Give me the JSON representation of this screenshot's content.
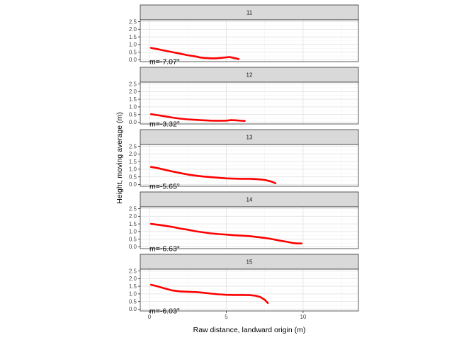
{
  "chart_data": {
    "type": "line",
    "xlabel": "Raw distance, landward origin (m)",
    "ylabel": "Height, moving average (m)",
    "xlim": [
      -0.6,
      13.6
    ],
    "ylim": [
      -0.12,
      2.62
    ],
    "x_ticks": [
      "0",
      "5",
      "10"
    ],
    "x_tick_values": [
      0,
      5,
      10
    ],
    "y_ticks": [
      "0.0",
      "0.5",
      "1.0",
      "1.5",
      "2.0",
      "2.5"
    ],
    "y_tick_values": [
      0,
      0.5,
      1,
      1.5,
      2,
      2.5
    ],
    "grid": true,
    "line_color": "#ff0000",
    "panels": [
      {
        "strip": "11",
        "annotation": "m=-7.07°",
        "x": [
          0.1,
          0.5,
          1.0,
          1.5,
          2.0,
          2.5,
          3.0,
          3.3,
          3.6,
          4.0,
          4.3,
          4.6,
          4.9,
          5.2,
          5.5,
          5.8
        ],
        "y": [
          0.78,
          0.7,
          0.6,
          0.5,
          0.4,
          0.3,
          0.22,
          0.15,
          0.12,
          0.1,
          0.1,
          0.12,
          0.15,
          0.18,
          0.12,
          0.05
        ]
      },
      {
        "strip": "12",
        "annotation": "m=-3.32°",
        "x": [
          0.1,
          0.5,
          1.0,
          1.5,
          2.0,
          2.5,
          3.0,
          3.5,
          4.0,
          4.5,
          5.0,
          5.3,
          5.6,
          6.0,
          6.2
        ],
        "y": [
          0.52,
          0.46,
          0.38,
          0.3,
          0.23,
          0.18,
          0.15,
          0.12,
          0.1,
          0.09,
          0.1,
          0.13,
          0.12,
          0.09,
          0.08
        ]
      },
      {
        "strip": "13",
        "annotation": "m=-5.65°",
        "x": [
          0.1,
          0.5,
          1.0,
          1.5,
          2.0,
          2.5,
          3.0,
          3.5,
          4.0,
          4.5,
          5.0,
          5.5,
          6.0,
          6.5,
          7.0,
          7.5,
          7.9,
          8.2
        ],
        "y": [
          1.15,
          1.08,
          0.96,
          0.85,
          0.75,
          0.65,
          0.58,
          0.52,
          0.48,
          0.44,
          0.4,
          0.38,
          0.37,
          0.37,
          0.35,
          0.3,
          0.2,
          0.08
        ]
      },
      {
        "strip": "14",
        "annotation": "m=-6.63°",
        "x": [
          0.1,
          0.5,
          1.0,
          1.5,
          2.0,
          2.5,
          3.0,
          3.5,
          4.0,
          4.5,
          5.0,
          5.5,
          6.0,
          6.5,
          7.0,
          7.5,
          8.0,
          8.5,
          9.0,
          9.3,
          9.6,
          9.9
        ],
        "y": [
          1.5,
          1.45,
          1.38,
          1.3,
          1.2,
          1.12,
          1.02,
          0.95,
          0.88,
          0.83,
          0.8,
          0.76,
          0.73,
          0.7,
          0.64,
          0.58,
          0.5,
          0.4,
          0.32,
          0.25,
          0.22,
          0.22
        ]
      },
      {
        "strip": "15",
        "annotation": "m=-6.03°",
        "x": [
          0.1,
          0.5,
          1.0,
          1.5,
          2.0,
          2.5,
          3.0,
          3.5,
          4.0,
          4.5,
          5.0,
          5.5,
          6.0,
          6.5,
          6.9,
          7.2,
          7.5,
          7.7
        ],
        "y": [
          1.6,
          1.5,
          1.35,
          1.22,
          1.16,
          1.14,
          1.12,
          1.08,
          1.02,
          0.97,
          0.94,
          0.93,
          0.93,
          0.92,
          0.88,
          0.8,
          0.62,
          0.4
        ]
      }
    ]
  }
}
